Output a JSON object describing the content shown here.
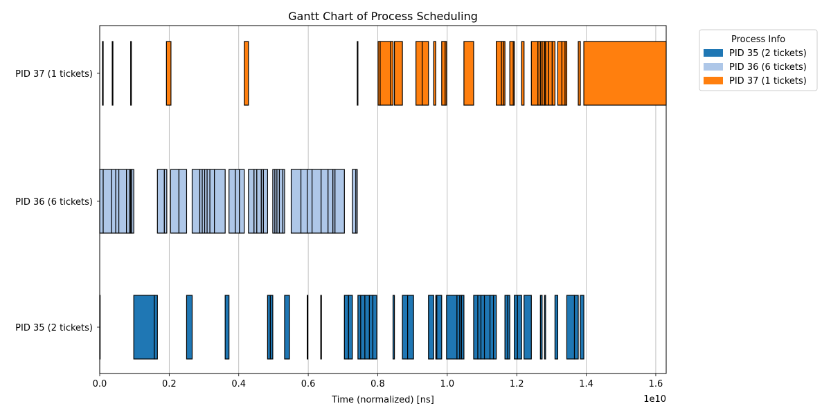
{
  "chart_data": {
    "type": "gantt",
    "title": "Gantt Chart of Process Scheduling",
    "xlabel": "Time (normalized) [ns]",
    "x_offset_label": "1e10",
    "x_ticks": [
      "0.0",
      "0.2",
      "0.4",
      "0.6",
      "0.8",
      "1.0",
      "1.2",
      "1.4",
      "1.6"
    ],
    "x_tick_values": [
      0.0,
      0.2,
      0.4,
      0.6,
      0.8,
      1.0,
      1.2,
      1.4,
      1.6
    ],
    "xlim": [
      0.0,
      1.63
    ],
    "grid": "x-axis vertical lines",
    "legend": {
      "title": "Process Info",
      "placement": "outside right, top",
      "entries": [
        {
          "label": "PID 35 (2 tickets)",
          "color": "#1f77b4"
        },
        {
          "label": "PID 36 (6 tickets)",
          "color": "#aec7e8"
        },
        {
          "label": "PID 37 (1 tickets)",
          "color": "#ff7f0e"
        }
      ]
    },
    "rows": [
      {
        "label": "PID 37 (1 tickets)",
        "color": "#ff7f0e",
        "intervals": [
          [
            0.008,
            0.01
          ],
          [
            0.036,
            0.038
          ],
          [
            0.089,
            0.091
          ],
          [
            0.192,
            0.205
          ],
          [
            0.416,
            0.428
          ],
          [
            0.741,
            0.743
          ],
          [
            0.801,
            0.807
          ],
          [
            0.807,
            0.837
          ],
          [
            0.837,
            0.844
          ],
          [
            0.848,
            0.871
          ],
          [
            0.91,
            0.928
          ],
          [
            0.928,
            0.946
          ],
          [
            0.961,
            0.967
          ],
          [
            0.984,
            0.994
          ],
          [
            0.994,
            0.998
          ],
          [
            1.048,
            1.076
          ],
          [
            1.141,
            1.156
          ],
          [
            1.156,
            1.162
          ],
          [
            1.162,
            1.166
          ],
          [
            1.18,
            1.19
          ],
          [
            1.19,
            1.193
          ],
          [
            1.214,
            1.221
          ],
          [
            1.242,
            1.261
          ],
          [
            1.261,
            1.268
          ],
          [
            1.268,
            1.273
          ],
          [
            1.273,
            1.28
          ],
          [
            1.28,
            1.283
          ],
          [
            1.283,
            1.292
          ],
          [
            1.292,
            1.302
          ],
          [
            1.302,
            1.31
          ],
          [
            1.318,
            1.33
          ],
          [
            1.33,
            1.339
          ],
          [
            1.339,
            1.344
          ],
          [
            1.377,
            1.383
          ],
          [
            1.393,
            1.63
          ]
        ]
      },
      {
        "label": "PID 36 (6 tickets)",
        "color": "#aec7e8",
        "intervals": [
          [
            0.0,
            0.01
          ],
          [
            0.01,
            0.034
          ],
          [
            0.034,
            0.046
          ],
          [
            0.046,
            0.055
          ],
          [
            0.055,
            0.077
          ],
          [
            0.077,
            0.085
          ],
          [
            0.085,
            0.089
          ],
          [
            0.089,
            0.092
          ],
          [
            0.092,
            0.098
          ],
          [
            0.166,
            0.186
          ],
          [
            0.186,
            0.193
          ],
          [
            0.204,
            0.228
          ],
          [
            0.228,
            0.25
          ],
          [
            0.266,
            0.288
          ],
          [
            0.288,
            0.295
          ],
          [
            0.295,
            0.302
          ],
          [
            0.302,
            0.309
          ],
          [
            0.309,
            0.317
          ],
          [
            0.317,
            0.33
          ],
          [
            0.33,
            0.361
          ],
          [
            0.372,
            0.39
          ],
          [
            0.39,
            0.402
          ],
          [
            0.402,
            0.416
          ],
          [
            0.428,
            0.444
          ],
          [
            0.444,
            0.452
          ],
          [
            0.452,
            0.465
          ],
          [
            0.465,
            0.471
          ],
          [
            0.471,
            0.483
          ],
          [
            0.498,
            0.504
          ],
          [
            0.504,
            0.51
          ],
          [
            0.51,
            0.517
          ],
          [
            0.517,
            0.527
          ],
          [
            0.527,
            0.532
          ],
          [
            0.551,
            0.579
          ],
          [
            0.579,
            0.597
          ],
          [
            0.597,
            0.611
          ],
          [
            0.611,
            0.637
          ],
          [
            0.637,
            0.657
          ],
          [
            0.657,
            0.671
          ],
          [
            0.671,
            0.677
          ],
          [
            0.677,
            0.704
          ],
          [
            0.727,
            0.737
          ],
          [
            0.737,
            0.741
          ]
        ]
      },
      {
        "label": "PID 35 (2 tickets)",
        "color": "#1f77b4",
        "intervals": [
          [
            0.0,
            0.001
          ],
          [
            0.098,
            0.157
          ],
          [
            0.157,
            0.166
          ],
          [
            0.25,
            0.266
          ],
          [
            0.361,
            0.372
          ],
          [
            0.483,
            0.491
          ],
          [
            0.491,
            0.498
          ],
          [
            0.532,
            0.546
          ],
          [
            0.597,
            0.599
          ],
          [
            0.636,
            0.638
          ],
          [
            0.704,
            0.716
          ],
          [
            0.716,
            0.727
          ],
          [
            0.743,
            0.751
          ],
          [
            0.751,
            0.763
          ],
          [
            0.763,
            0.776
          ],
          [
            0.776,
            0.786
          ],
          [
            0.786,
            0.797
          ],
          [
            0.844,
            0.848
          ],
          [
            0.871,
            0.886
          ],
          [
            0.886,
            0.903
          ],
          [
            0.946,
            0.961
          ],
          [
            0.967,
            0.97
          ],
          [
            0.97,
            0.984
          ],
          [
            0.998,
            1.028
          ],
          [
            1.028,
            1.036
          ],
          [
            1.036,
            1.041
          ],
          [
            1.041,
            1.048
          ],
          [
            1.076,
            1.088
          ],
          [
            1.088,
            1.097
          ],
          [
            1.097,
            1.107
          ],
          [
            1.107,
            1.123
          ],
          [
            1.123,
            1.133
          ],
          [
            1.133,
            1.141
          ],
          [
            1.166,
            1.174
          ],
          [
            1.174,
            1.18
          ],
          [
            1.193,
            1.202
          ],
          [
            1.202,
            1.214
          ],
          [
            1.221,
            1.242
          ],
          [
            1.268,
            1.273
          ],
          [
            1.28,
            1.283
          ],
          [
            1.31,
            1.318
          ],
          [
            1.344,
            1.366
          ],
          [
            1.366,
            1.377
          ],
          [
            1.383,
            1.393
          ]
        ]
      }
    ]
  }
}
